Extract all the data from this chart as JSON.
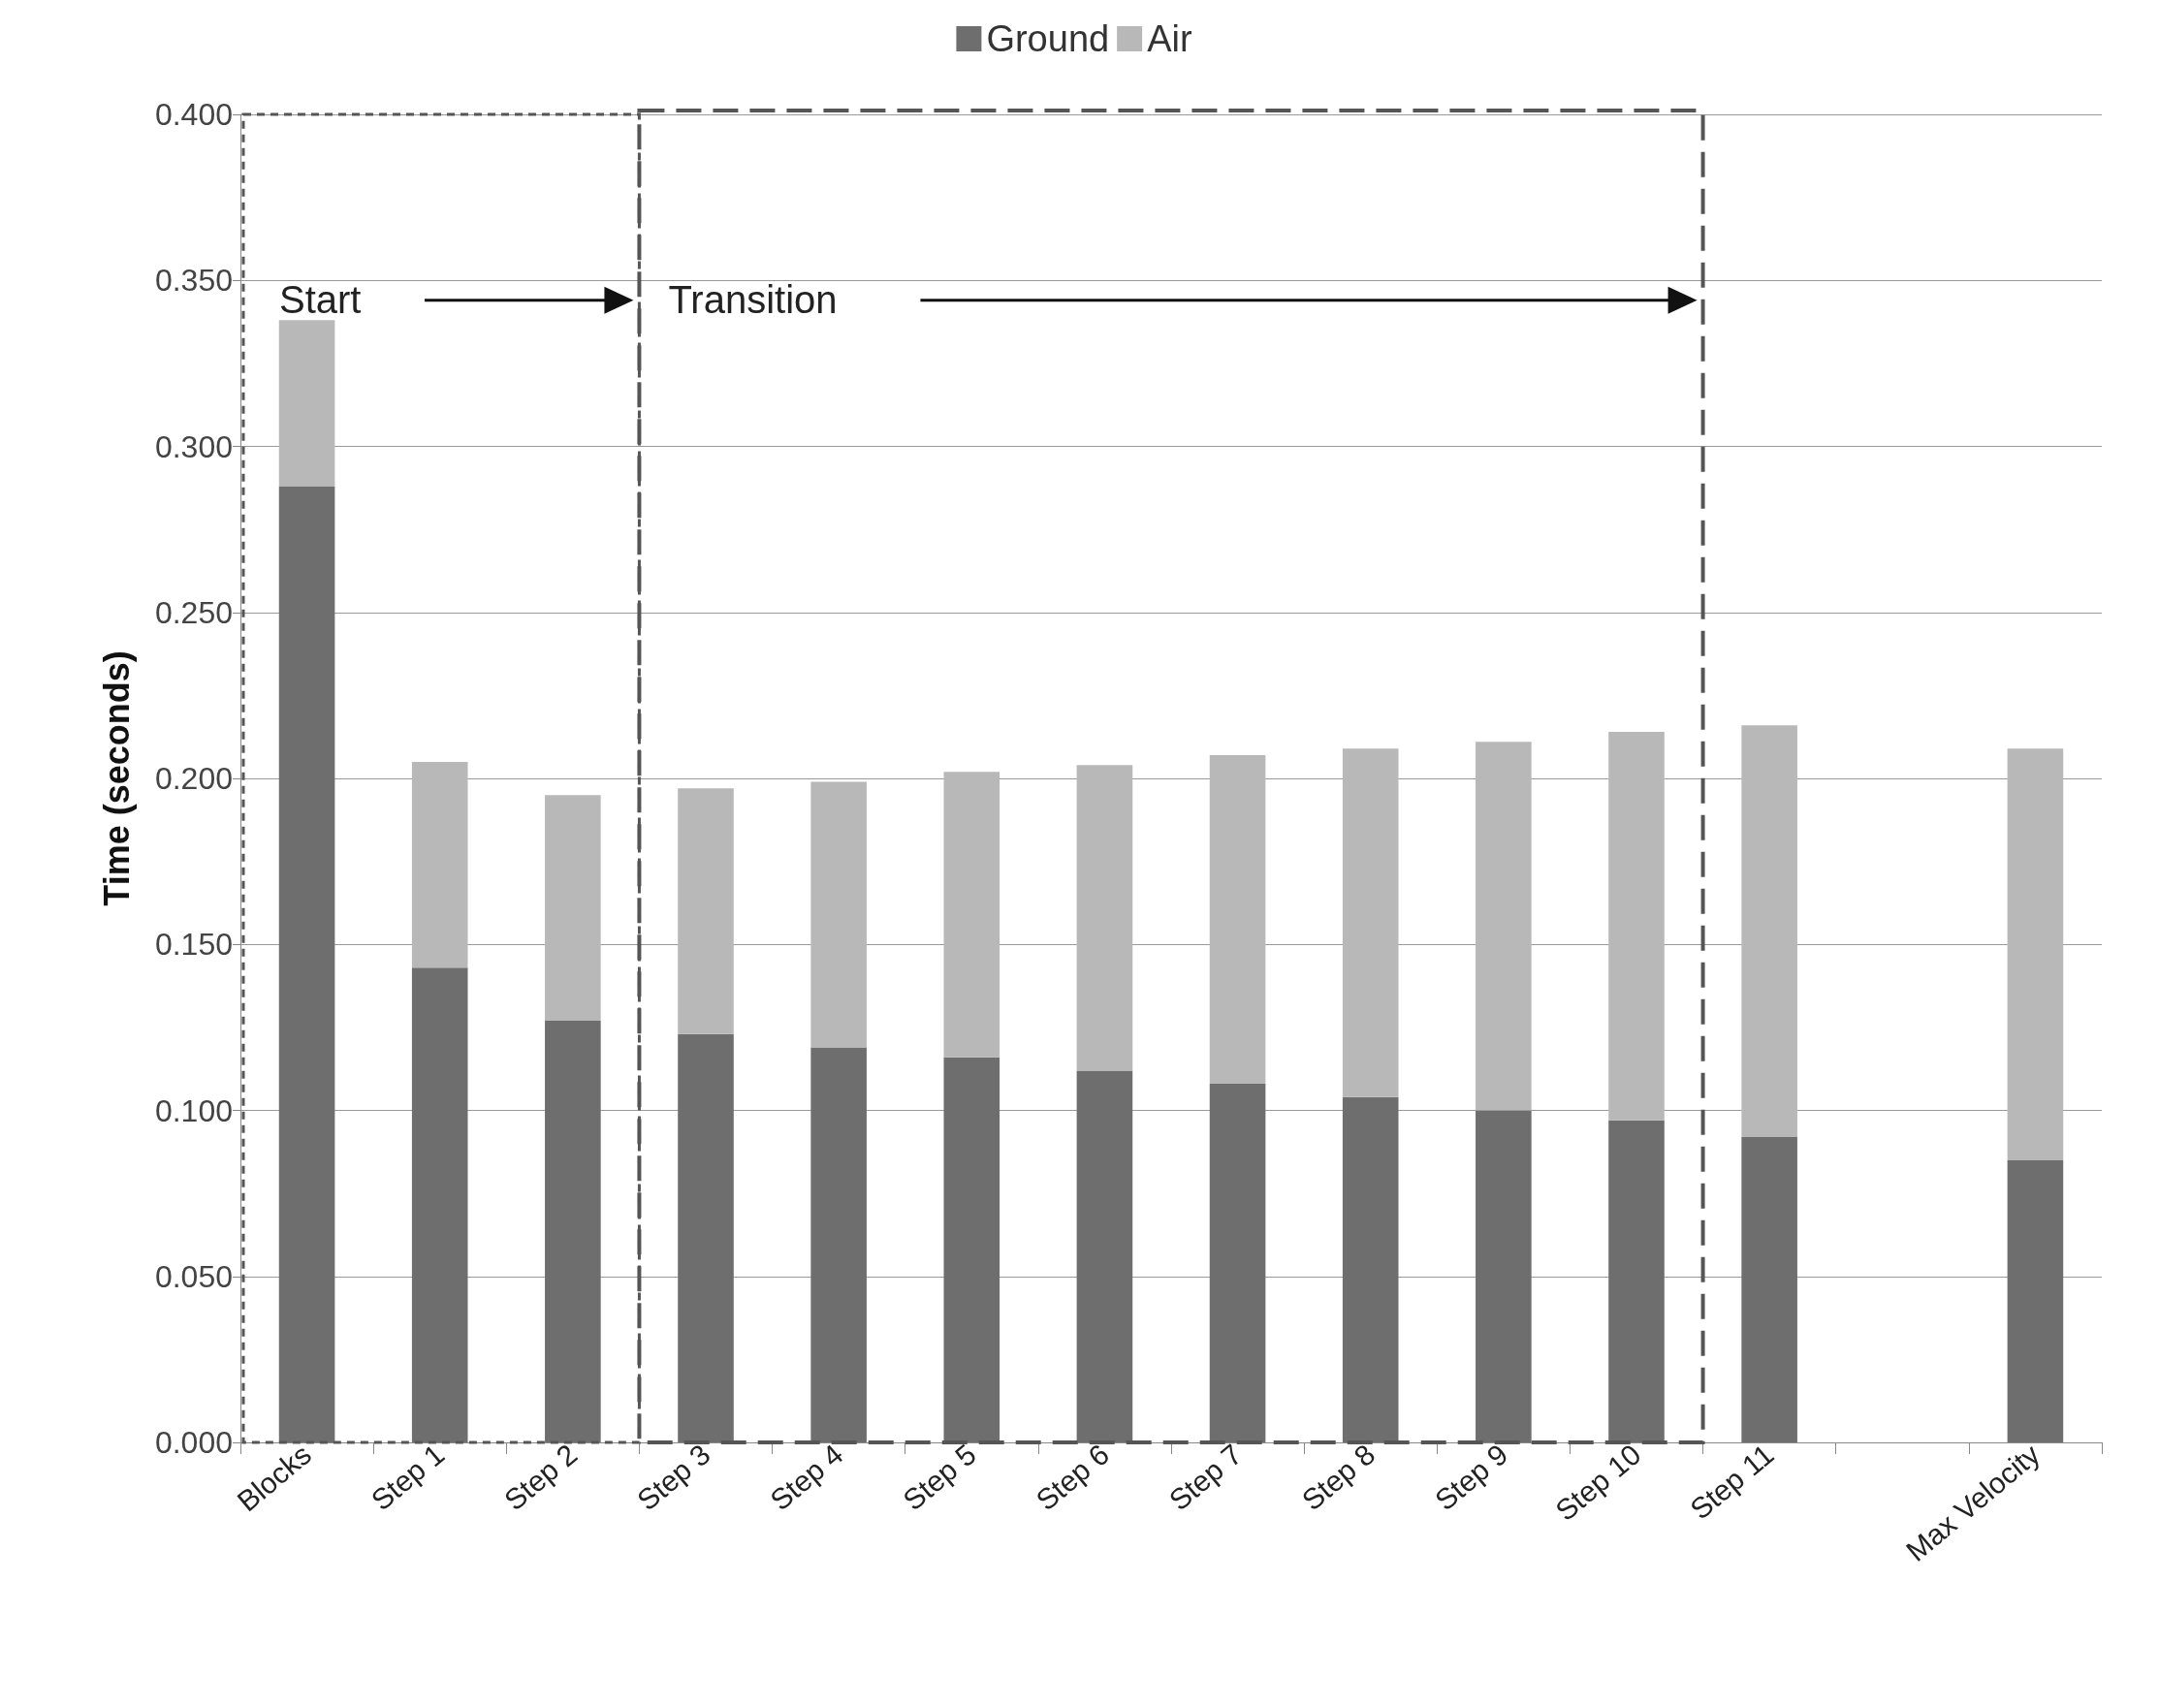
{
  "chart_data": {
    "type": "bar",
    "stacked": true,
    "ylabel": "Time (seconds)",
    "legend": "top",
    "grid": "y",
    "categories": [
      "Blocks",
      "Step 1",
      "Step 2",
      "Step 3",
      "Step 4",
      "Step 5",
      "Step 6",
      "Step 7",
      "Step 8",
      "Step 9",
      "Step 10",
      "Step 11",
      null,
      "Max Velocity"
    ],
    "series": [
      {
        "name": "Ground",
        "color": "#6e6e6e",
        "values": [
          0.288,
          0.143,
          0.127,
          0.123,
          0.119,
          0.116,
          0.112,
          0.108,
          0.104,
          0.1,
          0.097,
          0.092,
          null,
          0.085
        ]
      },
      {
        "name": "Air",
        "color": "#b8b8b8",
        "values": [
          0.05,
          0.062,
          0.068,
          0.074,
          0.08,
          0.086,
          0.092,
          0.099,
          0.105,
          0.111,
          0.117,
          0.124,
          null,
          0.124
        ]
      }
    ],
    "ylim": [
      0,
      0.4
    ],
    "yticks": [
      {
        "value": 0,
        "label": "0.000"
      },
      {
        "value": 0.05,
        "label": "0.050"
      },
      {
        "value": 0.1,
        "label": "0.100"
      },
      {
        "value": 0.15,
        "label": "0.150"
      },
      {
        "value": 0.2,
        "label": "0.200"
      },
      {
        "value": 0.25,
        "label": "0.250"
      },
      {
        "value": 0.3,
        "label": "0.300"
      },
      {
        "value": 0.35,
        "label": "0.350"
      },
      {
        "value": 0.4,
        "label": "0.400"
      }
    ],
    "annotations": [
      "Start",
      "Transition"
    ]
  }
}
